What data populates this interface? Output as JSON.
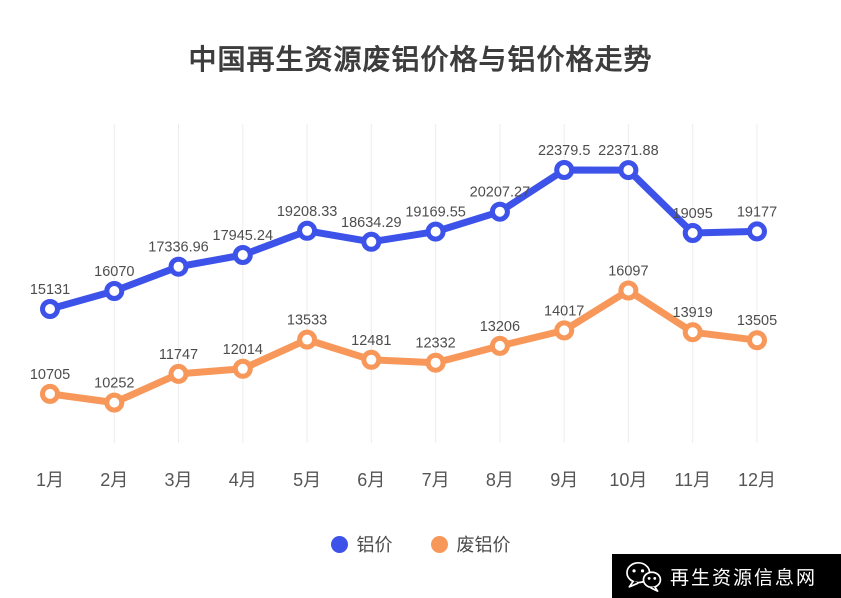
{
  "title": "中国再生资源废铝价格与铝价格走势",
  "chart_data": {
    "type": "line",
    "categories": [
      "1月",
      "2月",
      "3月",
      "4月",
      "5月",
      "6月",
      "7月",
      "8月",
      "9月",
      "10月",
      "11月",
      "12月"
    ],
    "series": [
      {
        "name": "铝价",
        "color": "#3d52e8",
        "values": [
          15131,
          16070,
          17336.96,
          17945.24,
          19208.33,
          18634.29,
          19169.55,
          20207.27,
          22379.5,
          22371.88,
          19095,
          19177
        ]
      },
      {
        "name": "废铝价",
        "color": "#f7985a",
        "values": [
          10705,
          10252,
          11747,
          12014,
          13533,
          12481,
          12332,
          13206,
          14017,
          16097,
          13919,
          13505
        ]
      }
    ],
    "ylim": [
      8143,
      24778
    ],
    "grid": "vertical-only",
    "gridline_color": "#ececec",
    "label_color": "#4d4d4d",
    "legend_position": "bottom"
  },
  "watermark": {
    "text": "再生资源信息网",
    "icon": "wechat-icon",
    "bg": "#000000",
    "fg": "#ffffff"
  }
}
